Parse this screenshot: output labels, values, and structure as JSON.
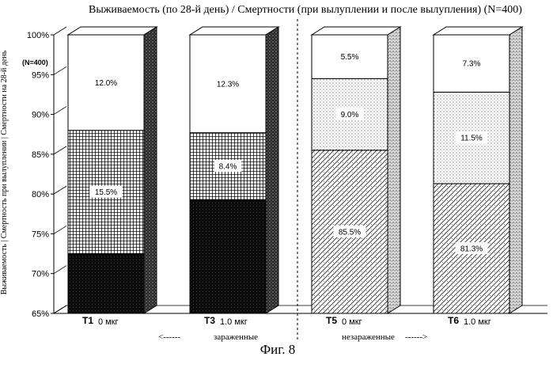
{
  "chart_data": {
    "type": "bar",
    "stacked": true,
    "title": "Выживаемость (по 28-й день) / Смертности (при вылуплении и после вылупления) (N=400)",
    "ylabel": "Выживаемость | Смертность при вылуплении | Смертности на 28-й день",
    "n_label": "(N=400)",
    "ylim": [
      65,
      100
    ],
    "yticks": [
      "65%",
      "70%",
      "75%",
      "80%",
      "85%",
      "90%",
      "95%",
      "100%"
    ],
    "ytick_values": [
      65,
      70,
      75,
      80,
      85,
      90,
      95,
      100
    ],
    "categories": [
      {
        "code": "T1",
        "dose": "0 мкг"
      },
      {
        "code": "T3",
        "dose": "1.0 мкг"
      },
      {
        "code": "T5",
        "dose": "0 мкг"
      },
      {
        "code": "T6",
        "dose": "1.0 мкг"
      }
    ],
    "bars": [
      {
        "survival": 72.5,
        "hatch": 15.5,
        "post": 12.0,
        "survival_label": "",
        "hatch_label": "15.5%",
        "post_label": "12.0%"
      },
      {
        "survival": 79.3,
        "hatch": 8.4,
        "post": 12.3,
        "survival_label": "",
        "hatch_label": "8.4%",
        "post_label": "12.3%"
      },
      {
        "survival": 85.5,
        "hatch": 9.0,
        "post": 5.5,
        "survival_label": "85.5%",
        "hatch_label": "9.0%",
        "post_label": "5.5%"
      },
      {
        "survival": 81.3,
        "hatch": 11.5,
        "post": 7.3,
        "survival_label": "81.3%",
        "hatch_label": "11.5%",
        "post_label": "7.3%"
      }
    ],
    "groups": [
      {
        "label": "зараженные",
        "arrow": "<------"
      },
      {
        "label": "незараженные",
        "arrow": "------>"
      }
    ],
    "grid": false,
    "legend": "none"
  },
  "caption": "Фиг. 8"
}
